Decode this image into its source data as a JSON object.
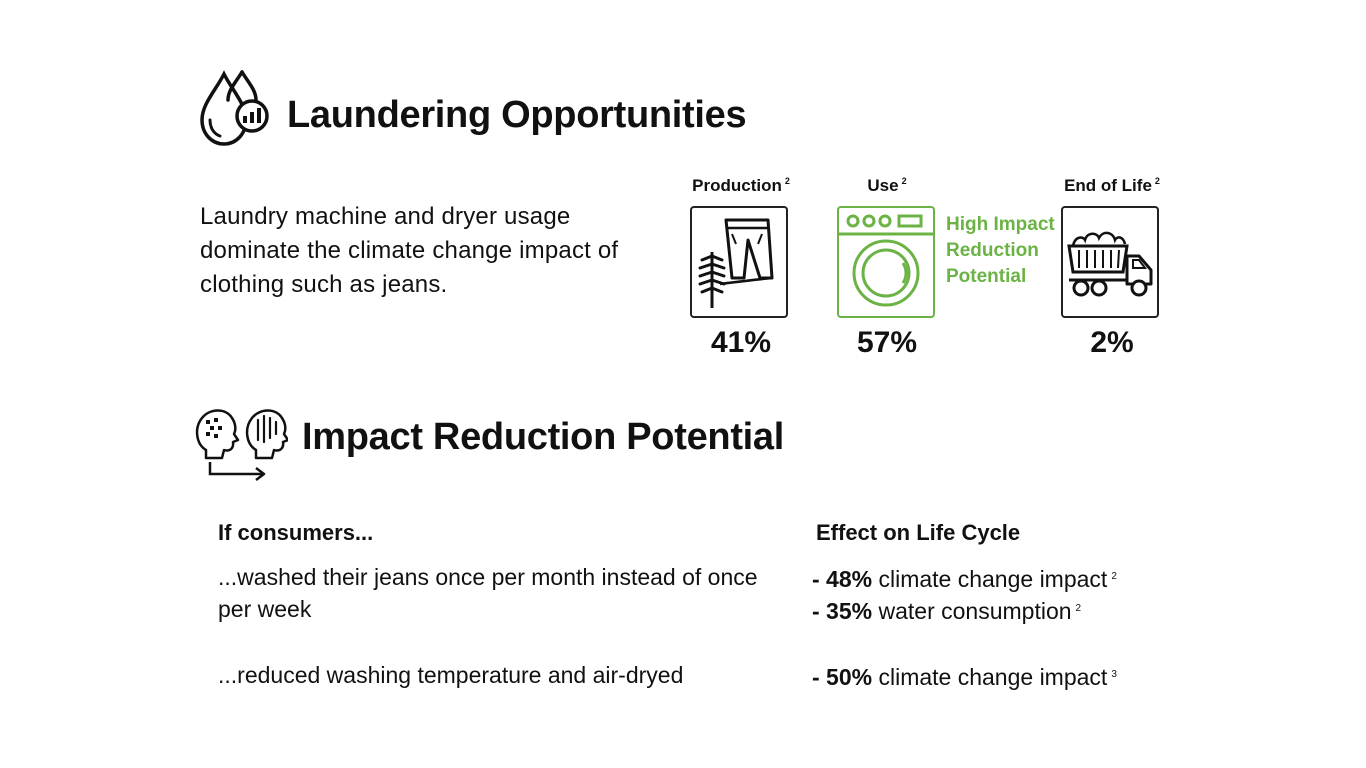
{
  "laundering": {
    "icon": "water-drops-chart-icon",
    "title": "Laundering Opportunities",
    "intro": "Laundry machine and dryer usage dominate the climate change impact of clothing such as jeans."
  },
  "stages": [
    {
      "label": "Production",
      "ref": "2",
      "percent": "41%",
      "icon": "jeans-icon"
    },
    {
      "label": "Use",
      "ref": "2",
      "percent": "57%",
      "icon": "washing-machine-icon",
      "highlight_color": "#6bb345"
    },
    {
      "label": "End of Life",
      "ref": "2",
      "percent": "2%",
      "icon": "dump-truck-icon"
    }
  ],
  "highlight_note": "High Impact Reduction Potential",
  "reduction": {
    "icon": "heads-change-icon",
    "title": "Impact Reduction Potential",
    "col_consumers": "If consumers...",
    "col_effect": "Effect on Life Cycle",
    "rows": [
      {
        "scenario": "...washed their jeans once per month instead of once per week",
        "effects": [
          {
            "value": "- 48%",
            "text": "climate change impact",
            "ref": "2"
          },
          {
            "value": "- 35%",
            "text": "water consumption",
            "ref": "2"
          }
        ]
      },
      {
        "scenario": "...reduced washing temperature and air-dryed",
        "effects": [
          {
            "value": "- 50%",
            "text": "climate change impact",
            "ref": "3"
          }
        ]
      }
    ]
  }
}
